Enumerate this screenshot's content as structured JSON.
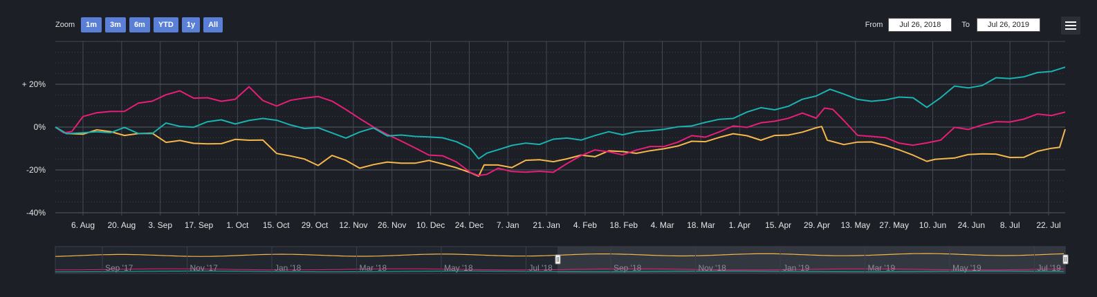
{
  "toolbar": {
    "zoom_label": "Zoom",
    "zoom_buttons": [
      "1m",
      "3m",
      "6m",
      "YTD",
      "1y",
      "All"
    ],
    "from_label": "From",
    "from_value": "Jul 26, 2018",
    "to_label": "To",
    "to_value": "Jul 26, 2019",
    "menu_icon": "hamburger-icon"
  },
  "chart_data": {
    "type": "line",
    "y_tick_labels": [
      "+ 20%",
      "0%",
      "-20%",
      "-40%"
    ],
    "y_ticks": [
      20,
      0,
      -20,
      -40
    ],
    "ylim": [
      -40,
      40
    ],
    "x_tick_labels": [
      "6. Aug",
      "20. Aug",
      "3. Sep",
      "17. Sep",
      "1. Oct",
      "15. Oct",
      "29. Oct",
      "12. Nov",
      "26. Nov",
      "10. Dec",
      "24. Dec",
      "7. Jan",
      "21. Jan",
      "4. Feb",
      "18. Feb",
      "4. Mar",
      "18. Mar",
      "1. Apr",
      "15. Apr",
      "29. Apr",
      "13. May",
      "27. May",
      "10. Jun",
      "24. Jun",
      "8. Jul",
      "22. Jul"
    ],
    "x_tick_days": [
      11,
      25,
      39,
      53,
      67,
      81,
      95,
      109,
      123,
      137,
      151,
      165,
      179,
      193,
      207,
      221,
      235,
      249,
      263,
      277,
      291,
      305,
      319,
      333,
      347,
      361
    ],
    "x_range_days": [
      0,
      365
    ],
    "grid": true,
    "colors": {
      "yellow": "#f7b84b",
      "pink": "#e91e78",
      "teal": "#1bb3b0"
    },
    "series": [
      {
        "color": "#f7b84b",
        "x": [
          0,
          4,
          10,
          15,
          20,
          25,
          30,
          35,
          40,
          45,
          50,
          55,
          60,
          65,
          70,
          75,
          80,
          85,
          90,
          95,
          100,
          105,
          110,
          115,
          120,
          125,
          130,
          135,
          140,
          145,
          150,
          153,
          155,
          160,
          165,
          170,
          175,
          180,
          185,
          190,
          195,
          200,
          205,
          210,
          215,
          220,
          225,
          230,
          235,
          240,
          245,
          250,
          255,
          260,
          265,
          270,
          275,
          277,
          279,
          285,
          290,
          295,
          300,
          305,
          310,
          315,
          318,
          325,
          330,
          335,
          340,
          345,
          350,
          355,
          360,
          363,
          365
        ],
        "y": [
          0,
          -3,
          -3,
          -2,
          -2,
          -3,
          -4,
          -3,
          -6,
          -7,
          -8,
          -7,
          -8,
          -6,
          -6,
          -6,
          -12,
          -14,
          -15,
          -17,
          -14,
          -16,
          -18,
          -18,
          -17,
          -16,
          -17,
          -16,
          -17,
          -19,
          -21,
          -23,
          -18,
          -18,
          -18,
          -16,
          -16,
          -15,
          -15,
          -14,
          -13,
          -11,
          -12,
          -12,
          -11,
          -10,
          -9,
          -7,
          -6,
          -5,
          -4,
          -3,
          -6,
          -5,
          -3,
          -2,
          -1,
          1,
          -6,
          -8,
          -7,
          -7,
          -9,
          -10,
          -13,
          -17,
          -15,
          -14,
          -14,
          -12,
          -12,
          -15,
          -14,
          -11,
          -10,
          -10,
          -1
        ]
      },
      {
        "color": "#e91e78",
        "x": [
          0,
          3,
          6,
          10,
          15,
          20,
          25,
          30,
          35,
          40,
          45,
          50,
          55,
          60,
          65,
          70,
          75,
          80,
          85,
          90,
          95,
          100,
          105,
          110,
          115,
          120,
          125,
          130,
          135,
          140,
          145,
          150,
          153,
          156,
          160,
          165,
          170,
          175,
          180,
          185,
          190,
          195,
          200,
          205,
          210,
          215,
          220,
          225,
          230,
          235,
          240,
          245,
          250,
          255,
          260,
          265,
          270,
          275,
          278,
          281,
          285,
          290,
          295,
          300,
          305,
          310,
          315,
          320,
          325,
          330,
          335,
          340,
          345,
          350,
          355,
          360,
          365
        ],
        "y": [
          0,
          -2,
          -2,
          6,
          6,
          7,
          8,
          11,
          12,
          15,
          17,
          14,
          13,
          12,
          14,
          18,
          12,
          11,
          12,
          13,
          15,
          12,
          8,
          4,
          0,
          -3,
          -7,
          -10,
          -12,
          -14,
          -17,
          -20,
          -23,
          -22,
          -20,
          -20,
          -21,
          -21,
          -21,
          -17,
          -13,
          -11,
          -12,
          -12,
          -11,
          -10,
          -8,
          -7,
          -5,
          -4,
          -2,
          0,
          0,
          2,
          3,
          4,
          6,
          5,
          8,
          8,
          2,
          -3,
          -4,
          -6,
          -7,
          -8,
          -8,
          -6,
          0,
          -1,
          1,
          2,
          3,
          4,
          5,
          6,
          7
        ]
      },
      {
        "color": "#1bb3b0",
        "x": [
          0,
          4,
          10,
          15,
          20,
          25,
          30,
          35,
          40,
          45,
          50,
          55,
          60,
          65,
          70,
          75,
          80,
          85,
          90,
          95,
          100,
          105,
          110,
          115,
          120,
          125,
          130,
          135,
          140,
          145,
          150,
          153,
          156,
          160,
          165,
          170,
          175,
          180,
          185,
          190,
          195,
          200,
          205,
          210,
          215,
          220,
          225,
          230,
          235,
          240,
          245,
          250,
          255,
          260,
          265,
          270,
          275,
          280,
          285,
          290,
          295,
          300,
          305,
          310,
          315,
          320,
          325,
          330,
          335,
          340,
          345,
          350,
          355,
          360,
          365
        ],
        "y": [
          0,
          -4,
          -3,
          -2,
          -2,
          -1,
          -3,
          -2,
          1,
          0,
          1,
          2,
          3,
          2,
          3,
          4,
          3,
          1,
          0,
          -1,
          -3,
          -4,
          -3,
          -1,
          -3,
          -4,
          -5,
          -4,
          -5,
          -7,
          -10,
          -14,
          -12,
          -10,
          -9,
          -8,
          -7,
          -6,
          -6,
          -5,
          -4,
          -3,
          -3,
          -2,
          -2,
          -1,
          0,
          1,
          2,
          3,
          5,
          7,
          8,
          9,
          10,
          12,
          15,
          18,
          15,
          13,
          12,
          13,
          14,
          13,
          10,
          14,
          18,
          19,
          20,
          22,
          23,
          24,
          25,
          26,
          28
        ]
      }
    ],
    "navigator": {
      "tick_labels": [
        "Sep '17",
        "Nov '17",
        "Jan '18",
        "Mar '18",
        "May '18",
        "Jul '18",
        "Sep '18",
        "Nov '18",
        "Jan '19",
        "Mar '19",
        "May '19",
        "Jul '19"
      ]
    }
  }
}
